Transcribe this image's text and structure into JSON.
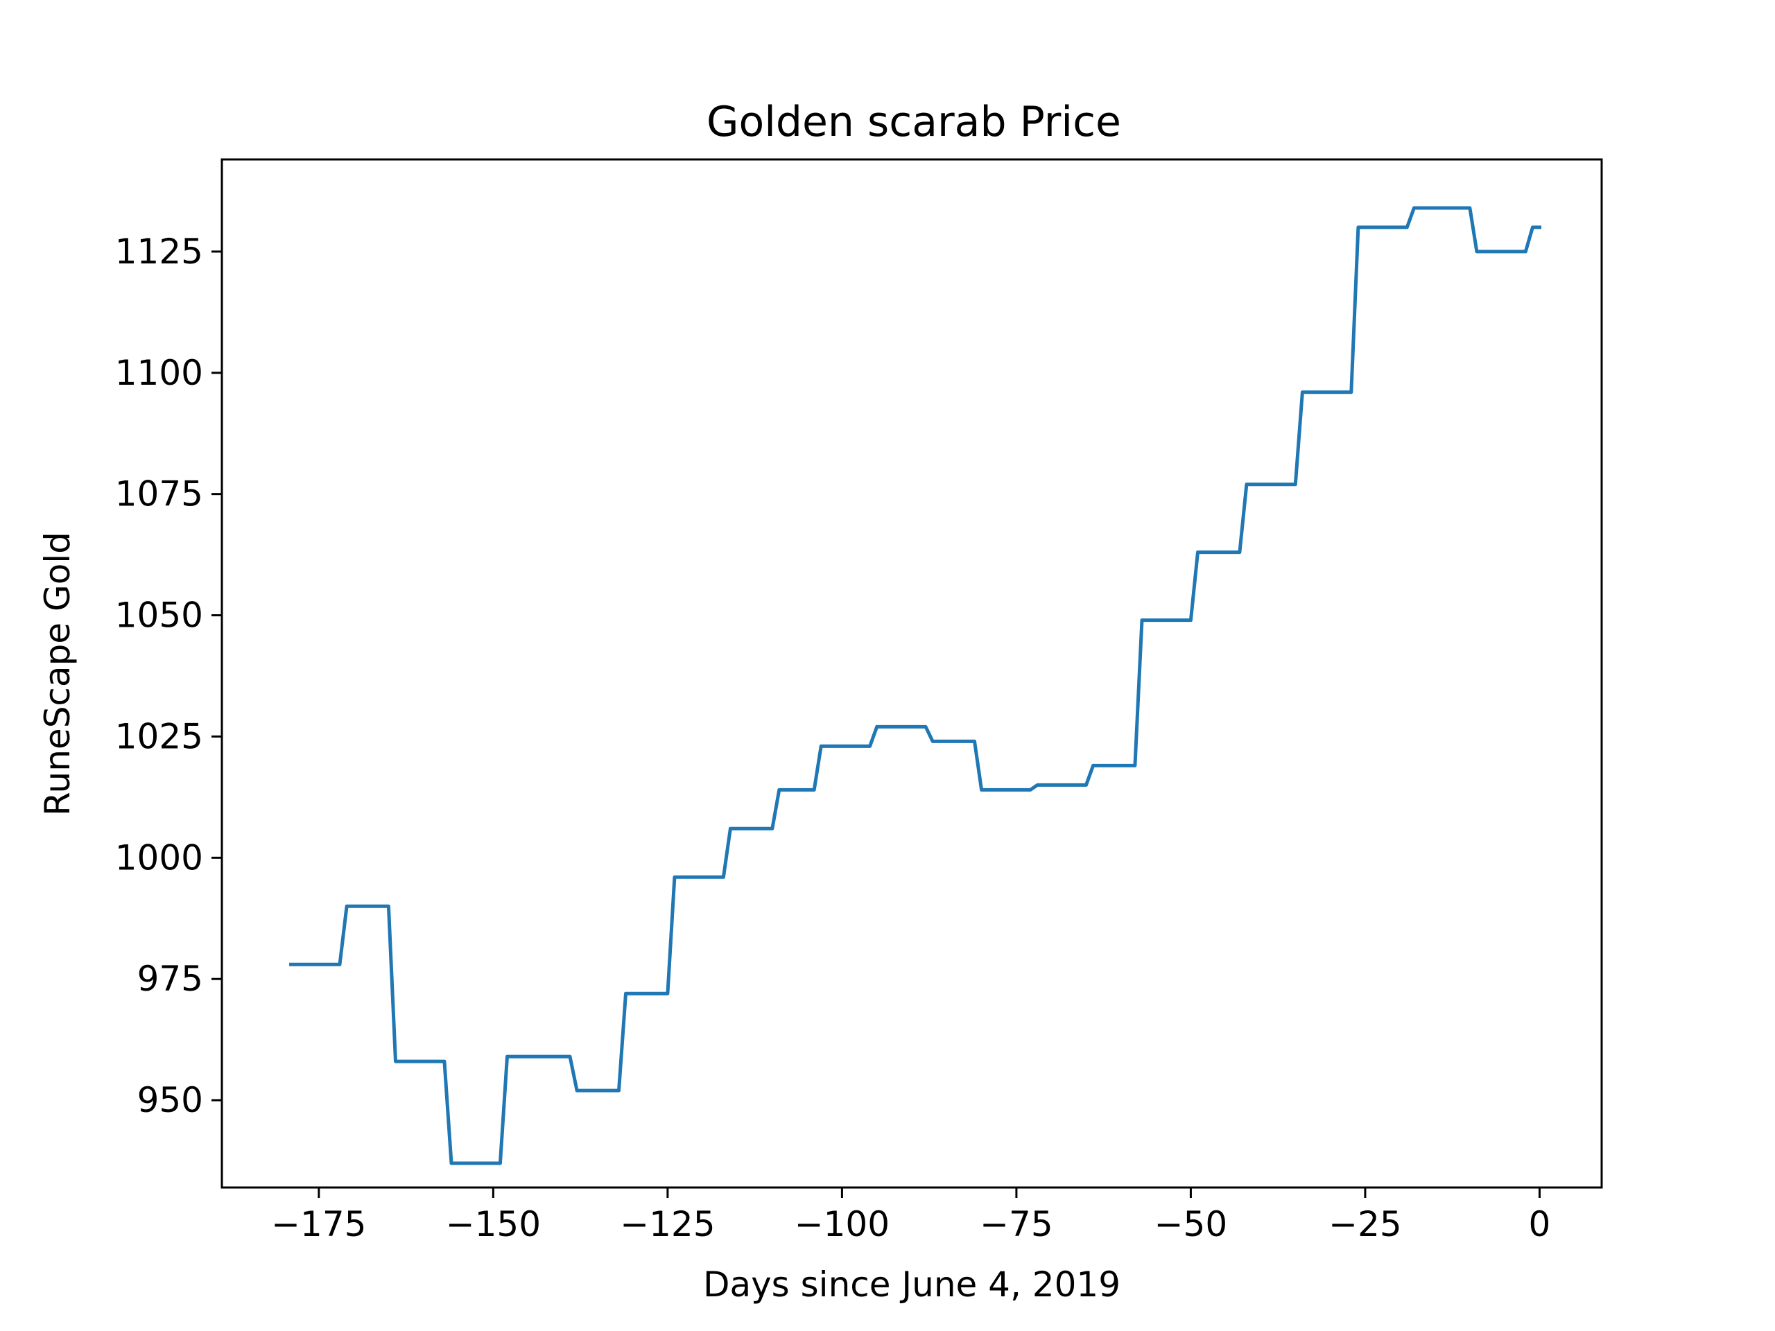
{
  "chart_data": {
    "type": "line",
    "title": "Golden scarab Price",
    "xlabel": "Days since June 4, 2019",
    "ylabel": "RuneScape Gold",
    "xlim": [
      -188.9,
      8.9
    ],
    "ylim": [
      932,
      1144
    ],
    "xticks": [
      -175,
      -150,
      -125,
      -100,
      -75,
      -50,
      -25,
      0
    ],
    "xtick_labels": [
      "−175",
      "−150",
      "−125",
      "−100",
      "−75",
      "−50",
      "−25",
      "0"
    ],
    "yticks": [
      950,
      975,
      1000,
      1025,
      1050,
      1075,
      1100,
      1125
    ],
    "ytick_labels": [
      "950",
      "975",
      "1000",
      "1025",
      "1050",
      "1075",
      "1100",
      "1125"
    ],
    "grid": false,
    "line_color": "#1f77b4",
    "series": [
      {
        "x": [
          -179,
          -172,
          -171,
          -165,
          -164,
          -157,
          -156,
          -149,
          -148,
          -139,
          -138,
          -132,
          -131,
          -125,
          -124,
          -117,
          -116,
          -110,
          -109,
          -104,
          -103,
          -96,
          -95,
          -88,
          -87,
          -81,
          -80,
          -73,
          -72,
          -65,
          -64,
          -58,
          -57,
          -50,
          -49,
          -43,
          -42,
          -35,
          -34,
          -27,
          -26,
          -19,
          -18,
          -10,
          -9,
          -2,
          -1,
          0
        ],
        "y": [
          978,
          978,
          990,
          990,
          958,
          958,
          937,
          937,
          959,
          959,
          952,
          952,
          972,
          972,
          996,
          996,
          1006,
          1006,
          1014,
          1014,
          1023,
          1023,
          1027,
          1027,
          1024,
          1024,
          1014,
          1014,
          1015,
          1015,
          1019,
          1019,
          1049,
          1049,
          1063,
          1063,
          1077,
          1077,
          1096,
          1096,
          1130,
          1130,
          1134,
          1134,
          1125,
          1125,
          1130,
          1130
        ]
      }
    ]
  }
}
